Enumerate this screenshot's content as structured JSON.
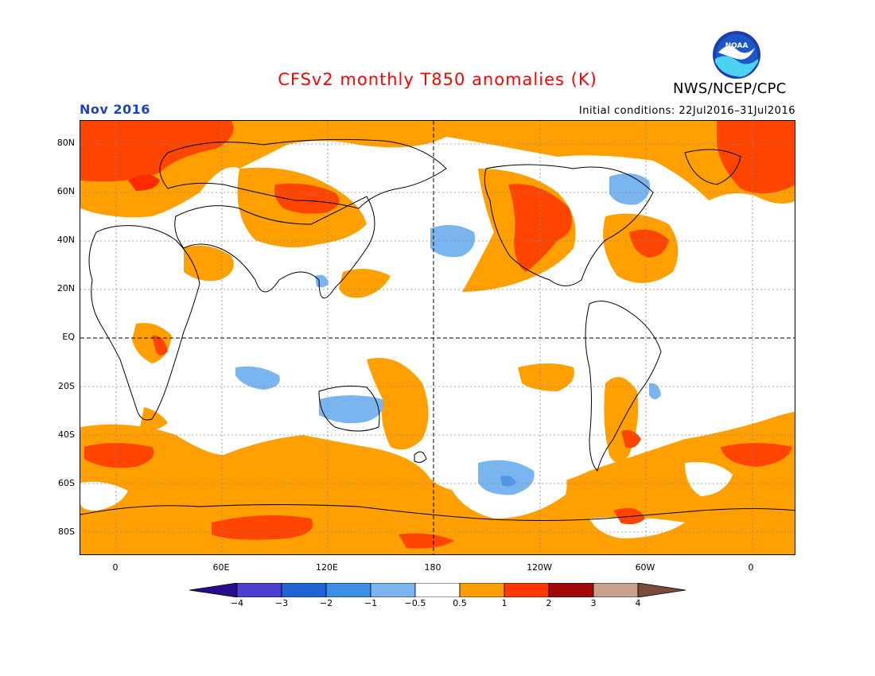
{
  "header": {
    "title": "CFSv2 monthly T850 anomalies (K)",
    "period": "Nov 2016",
    "initial_conditions": "Initial conditions: 22Jul2016–31Jul2016",
    "agency": "NWS/NCEP/CPC",
    "logo_text": "NOAA"
  },
  "axes": {
    "y_labels": [
      "80N",
      "60N",
      "40N",
      "20N",
      "EQ",
      "20S",
      "40S",
      "60S",
      "80S"
    ],
    "x_labels": [
      "0",
      "60E",
      "120E",
      "180",
      "120W",
      "60W",
      "0"
    ]
  },
  "colorbar": {
    "labels": [
      "−4",
      "−3",
      "−2",
      "−1",
      "−0.5",
      "0.5",
      "1",
      "2",
      "3",
      "4"
    ],
    "colors": [
      "#2a0c8a",
      "#4a3fd0",
      "#1f63d6",
      "#3d8ee6",
      "#7ab5ef",
      "#ffffff",
      "#ff9e00",
      "#ff3a00",
      "#a20a0a",
      "#c8a090",
      "#7a4a3a"
    ]
  },
  "legend_colors": {
    "warm_weak": "#ffa000",
    "warm_mid": "#ff4500",
    "cool_weak": "#7ab5ef",
    "cool_mid": "#4f96e4",
    "coast": "#000000"
  }
}
